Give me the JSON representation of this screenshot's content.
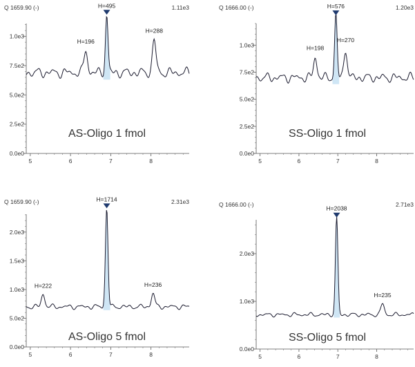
{
  "chart_data": [
    {
      "type": "line",
      "header_left": "Q 1659.90 (-)",
      "header_right": "1.11e3",
      "sample_label": "AS-Oligo 1 fmol",
      "xlim": [
        4.9,
        8.95
      ],
      "ylim": [
        0,
        1110
      ],
      "x_ticks": [
        "5",
        "6",
        "7",
        "8"
      ],
      "y_ticks": [
        "0.0e0",
        "2.5e2",
        "5.0e2",
        "7.5e2",
        "1.0e3"
      ],
      "line_color": "#1a1a2e",
      "peak_fill_color": "#cfe6f5",
      "baseline_level": 690,
      "noise_amplitude": 45,
      "seed": 11,
      "peaks": [
        {
          "x": 6.38,
          "height": 196,
          "label": "H=196"
        },
        {
          "x": 6.9,
          "height": 495,
          "label": "H=495",
          "main": true
        },
        {
          "x": 8.08,
          "height": 288,
          "label": "H=288"
        }
      ]
    },
    {
      "type": "line",
      "header_left": "Q 1666.00 (-)",
      "header_right": "1.20e3",
      "sample_label": "SS-Oligo 1 fmol",
      "xlim": [
        4.9,
        8.95
      ],
      "ylim": [
        0,
        1200
      ],
      "x_ticks": [
        "5",
        "6",
        "7",
        "8"
      ],
      "y_ticks": [
        "0.0e0",
        "2.5e2",
        "5.0e2",
        "7.5e2",
        "1.0e3"
      ],
      "line_color": "#1a1a2e",
      "peak_fill_color": "#cfe6f5",
      "baseline_level": 700,
      "noise_amplitude": 45,
      "seed": 23,
      "peaks": [
        {
          "x": 6.42,
          "height": 198,
          "label": "H=198"
        },
        {
          "x": 6.95,
          "height": 576,
          "label": "H=576",
          "main": true
        },
        {
          "x": 7.2,
          "height": 270,
          "label": "H=270"
        }
      ]
    },
    {
      "type": "line",
      "header_left": "Q 1659.90 (-)",
      "header_right": "2.31e3",
      "sample_label": "AS-Oligo 5 fmol",
      "xlim": [
        4.9,
        8.95
      ],
      "ylim": [
        0,
        2310
      ],
      "x_ticks": [
        "5",
        "6",
        "7",
        "8"
      ],
      "y_ticks": [
        "0.0e0",
        "5.0e2",
        "1.0e3",
        "1.5e3",
        "2.0e3"
      ],
      "line_color": "#1a1a2e",
      "peak_fill_color": "#cfe6f5",
      "baseline_level": 700,
      "noise_amplitude": 45,
      "seed": 37,
      "peaks": [
        {
          "x": 5.32,
          "height": 222,
          "label": "H=222"
        },
        {
          "x": 6.9,
          "height": 1714,
          "label": "H=1714",
          "main": true
        },
        {
          "x": 8.05,
          "height": 236,
          "label": "H=236"
        }
      ]
    },
    {
      "type": "line",
      "header_left": "Q 1666.00 (-)",
      "header_right": "2.71e3",
      "sample_label": "SS-Oligo 5 fmol",
      "xlim": [
        4.9,
        8.95
      ],
      "ylim": [
        0,
        2710
      ],
      "x_ticks": [
        "5",
        "6",
        "7",
        "8"
      ],
      "y_ticks": [
        "0.0e0",
        "1.0e3",
        "2.0e3"
      ],
      "line_color": "#1a1a2e",
      "peak_fill_color": "#cfe6f5",
      "baseline_level": 720,
      "noise_amplitude": 45,
      "seed": 53,
      "peaks": [
        {
          "x": 6.97,
          "height": 2038,
          "label": "H=2038",
          "main": true
        },
        {
          "x": 8.15,
          "height": 235,
          "label": "H=235"
        }
      ]
    }
  ]
}
